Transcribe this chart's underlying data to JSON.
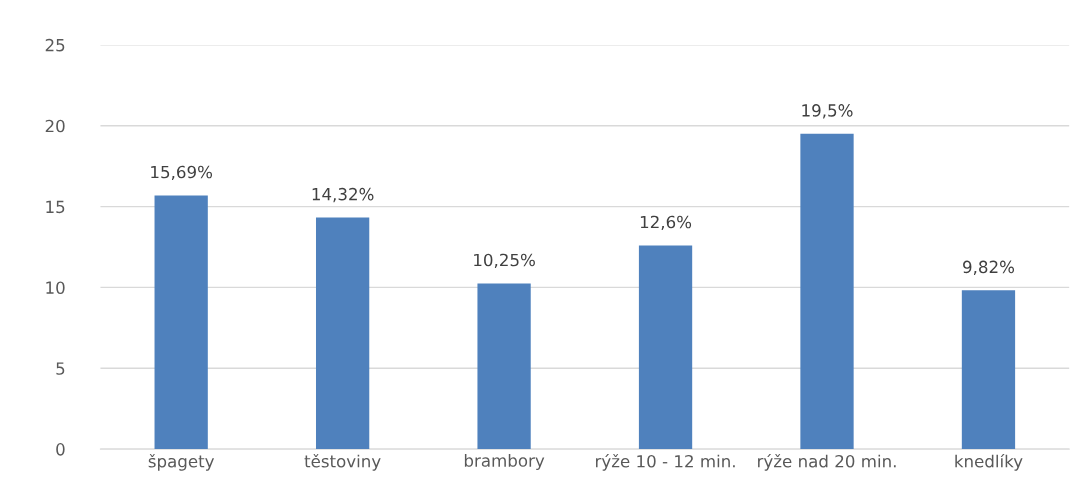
{
  "chart_data": {
    "type": "bar",
    "categories": [
      "špagety",
      "těstoviny",
      "brambory",
      "rýže 10 - 12 min.",
      "rýže nad 20 min.",
      "knedlíky"
    ],
    "values": [
      15.69,
      14.32,
      10.25,
      12.6,
      19.5,
      9.82
    ],
    "value_labels": [
      "15,69%",
      "14,32%",
      "10,25%",
      "12,6%",
      "19,5%",
      "9,82%"
    ],
    "color": "#4f81bd",
    "ylim": [
      0,
      25
    ],
    "yticks": [
      0,
      5,
      10,
      15,
      20,
      25
    ],
    "grid": "y",
    "legend": false
  }
}
